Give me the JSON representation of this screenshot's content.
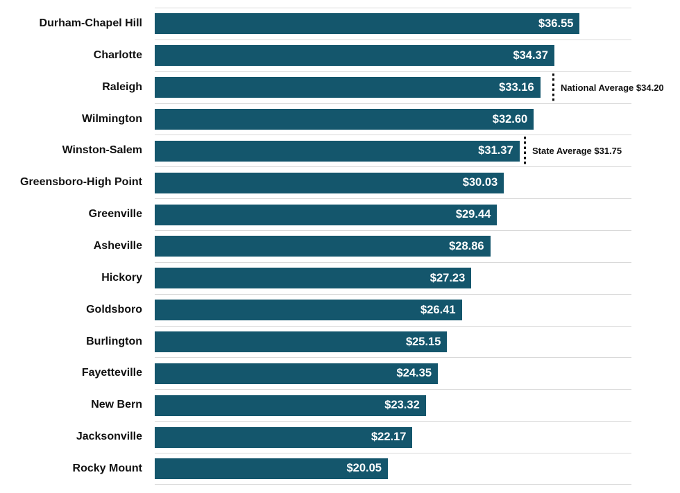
{
  "chart_data": {
    "type": "bar",
    "orientation": "horizontal",
    "title": "",
    "xlabel": "",
    "ylabel": "",
    "categories": [
      "Durham-Chapel Hill",
      "Charlotte",
      "Raleigh",
      "Wilmington",
      "Winston-Salem",
      "Greensboro-High Point",
      "Greenville",
      "Asheville",
      "Hickory",
      "Goldsboro",
      "Burlington",
      "Fayetteville",
      "New Bern",
      "Jacksonville",
      "Rocky Mount"
    ],
    "values": [
      36.55,
      34.37,
      33.16,
      32.6,
      31.37,
      30.03,
      29.44,
      28.86,
      27.23,
      26.41,
      25.15,
      24.35,
      23.32,
      22.17,
      20.05
    ],
    "value_labels": [
      "$36.55",
      "$34.37",
      "$33.16",
      "$32.60",
      "$31.37",
      "$30.03",
      "$29.44",
      "$28.86",
      "$27.23",
      "$26.41",
      "$25.15",
      "$24.35",
      "$23.32",
      "$22.17",
      "$20.05"
    ],
    "xlim": [
      0,
      41
    ],
    "grid": "horizontal-row-separators",
    "legend": "none",
    "annotations": [
      {
        "label": "National Average $34.20",
        "value": 34.2,
        "row": "Raleigh",
        "row_index": 2
      },
      {
        "label": "State Average $31.75",
        "value": 31.75,
        "row": "Winston-Salem",
        "row_index": 4
      }
    ],
    "colors": {
      "bar": "#14566C",
      "bar_value_text": "#FFFFFF",
      "category_label_text": "#111111",
      "separator_line": "#D8D8D8",
      "annotation_line": "#111111",
      "annotation_text": "#111111",
      "background": "#FFFFFF"
    }
  }
}
